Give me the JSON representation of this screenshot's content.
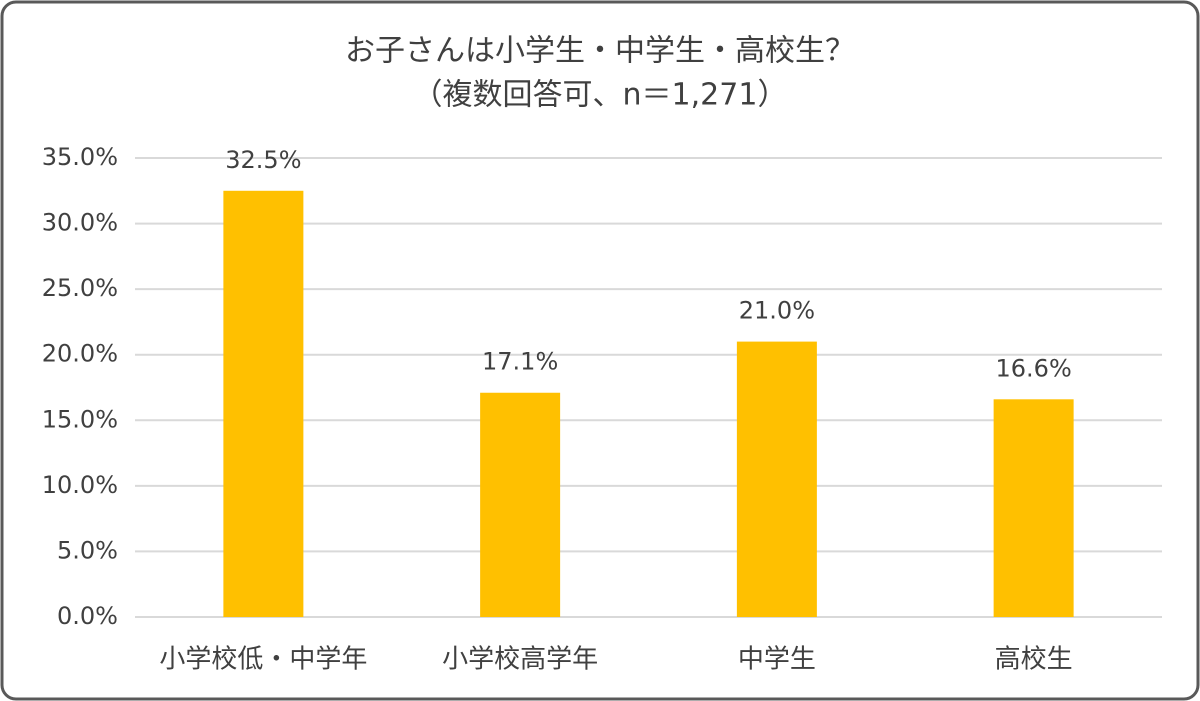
{
  "chart_data": {
    "type": "bar",
    "title": "お子さんは小学生・中学生・高校生？",
    "subtitle": "（複数回答可、n＝1,271）",
    "categories": [
      "小学校低・中学年",
      "小学校高学年",
      "中学生",
      "高校生"
    ],
    "values": [
      32.5,
      17.1,
      21.0,
      16.6
    ],
    "value_labels": [
      "32.5%",
      "17.1%",
      "21.0%",
      "16.6%"
    ],
    "color": "#ffc000",
    "ylim": [
      0,
      35
    ],
    "yticks": [
      {
        "value": 0,
        "label": "0.0%"
      },
      {
        "value": 5,
        "label": "5.0%"
      },
      {
        "value": 10,
        "label": "10.0%"
      },
      {
        "value": 15,
        "label": "15.0%"
      },
      {
        "value": 20,
        "label": "20.0%"
      },
      {
        "value": 25,
        "label": "25.0%"
      },
      {
        "value": 30,
        "label": "30.0%"
      },
      {
        "value": 35,
        "label": "35.0%"
      }
    ],
    "grid": true
  }
}
